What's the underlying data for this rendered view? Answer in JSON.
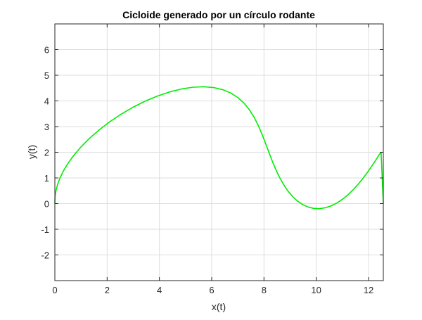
{
  "chart_data": {
    "type": "line",
    "title": "Cicloide generado por un círculo rodante",
    "xlabel": "x(t)",
    "ylabel": "y(t)",
    "xlim": [
      0,
      12.566
    ],
    "ylim": [
      -3,
      7
    ],
    "xticks": [
      0,
      2,
      4,
      6,
      8,
      10,
      12
    ],
    "yticks": [
      -2,
      -1,
      0,
      1,
      2,
      3,
      4,
      5,
      6
    ],
    "grid": true,
    "legend": "none",
    "series": [
      {
        "color": "#00ee00",
        "x": [
          0,
          0.0016,
          0.0128,
          0.0427,
          0.1002,
          0.1929,
          0.3267,
          0.5058,
          0.7323,
          1.0065,
          1.3267,
          1.6895,
          2.0899,
          2.5211,
          2.9755,
          3.4447,
          3.9196,
          4.3909,
          4.8499,
          5.2888,
          5.7007,
          6.0806,
          6.425,
          6.7323,
          7.0028,
          7.2384,
          7.4425,
          7.6197,
          7.7755,
          7.9158,
          8.0464,
          8.173,
          8.3007,
          8.4339,
          8.5761,
          8.7298,
          8.8963,
          9.076,
          9.2682,
          9.4713,
          9.6836,
          9.9025,
          10.1255,
          10.35,
          10.5735,
          10.7938,
          11.0092,
          11.2181,
          11.4193,
          11.6116,
          11.7941,
          11.9656,
          12.1249,
          12.2703,
          12.3994,
          12.4808,
          12.5663
        ],
        "y": [
          0,
          0.1367,
          0.3044,
          0.5034,
          0.7327,
          0.9896,
          1.2712,
          1.573,
          1.8897,
          2.2151,
          2.5432,
          2.8672,
          3.1802,
          3.4755,
          3.7462,
          3.986,
          4.1891,
          4.3506,
          4.4666,
          4.5345,
          4.5524,
          4.5197,
          4.4372,
          4.3063,
          4.1299,
          3.9117,
          3.6563,
          3.3694,
          3.0575,
          2.7273,
          2.3861,
          2.0416,
          1.7012,
          1.3722,
          1.0615,
          0.7753,
          0.5188,
          0.2966,
          0.1121,
          -0.0319,
          -0.132,
          -0.1867,
          -0.1959,
          -0.1613,
          -0.0858,
          0.0262,
          0.1722,
          0.3475,
          0.5467,
          0.764,
          0.993,
          1.2272,
          1.4598,
          1.6836,
          1.8914,
          2.0,
          0
        ]
      }
    ]
  }
}
